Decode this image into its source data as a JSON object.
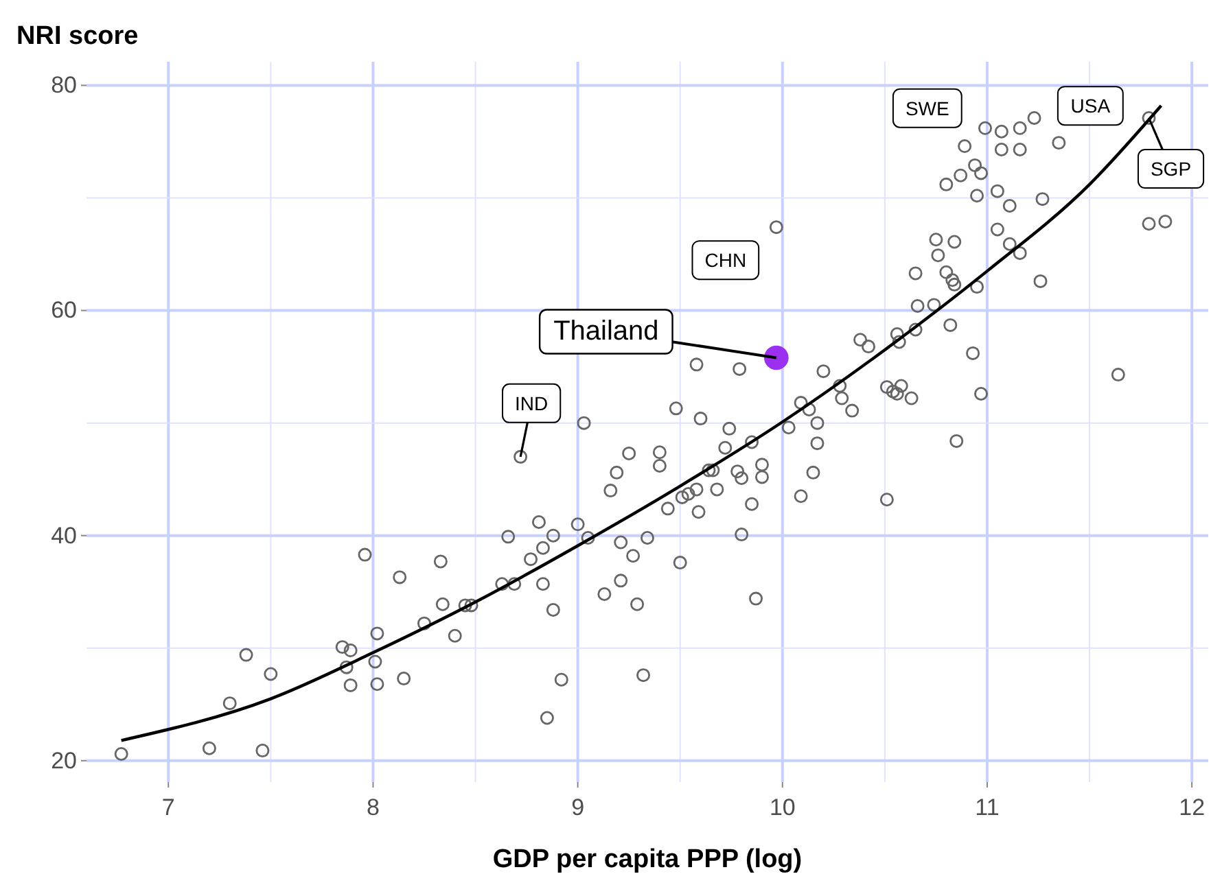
{
  "chart_data": {
    "type": "scatter",
    "ylabel": "NRI score",
    "xlabel": "GDP per capita PPP (log)",
    "xlim": [
      6.6,
      12.08
    ],
    "ylim": [
      18.1,
      82.1
    ],
    "xticks": [
      7,
      8,
      9,
      10,
      11,
      12
    ],
    "yticks": [
      20,
      40,
      60,
      80
    ],
    "grid": true,
    "marker": "circle",
    "series": [
      {
        "type": "scatter",
        "color": "#666666",
        "x": [
          6.77,
          7.2,
          7.46,
          7.3,
          7.38,
          7.5,
          7.96,
          8.13,
          8.33,
          8.34,
          8.4,
          8.25,
          8.45,
          8.48,
          7.85,
          7.89,
          7.87,
          8.02,
          8.01,
          7.89,
          8.02,
          8.15,
          8.66,
          8.88,
          8.83,
          8.77,
          8.63,
          8.69,
          8.83,
          8.88,
          9.05,
          9.21,
          9.34,
          9.27,
          9.21,
          9.13,
          9.29,
          9.5,
          9.8,
          9.87,
          8.92,
          9.32,
          8.85,
          8.81,
          9.0,
          9.97,
          9.58,
          9.79,
          9.48,
          9.6,
          9.03,
          8.72,
          9.25,
          9.4,
          9.4,
          9.74,
          9.85,
          9.72,
          9.19,
          9.16,
          9.64,
          9.66,
          9.78,
          9.8,
          9.9,
          9.9,
          9.58,
          9.68,
          9.44,
          9.51,
          9.54,
          9.59,
          9.85,
          10.09,
          10.15,
          10.03,
          10.09,
          10.13,
          10.17,
          10.17,
          10.2,
          10.28,
          10.29,
          10.34,
          10.38,
          10.42,
          10.51,
          10.54,
          10.56,
          10.58,
          10.63,
          10.56,
          10.57,
          10.65,
          10.82,
          10.93,
          10.97,
          10.85,
          10.51,
          11.64,
          10.99,
          11.07,
          11.16,
          11.23,
          10.89,
          11.07,
          11.16,
          11.35,
          10.94,
          10.87,
          10.97,
          10.8,
          10.95,
          11.05,
          11.11,
          11.27,
          11.79,
          11.79,
          11.87,
          11.05,
          11.11,
          11.16,
          11.26,
          10.75,
          10.84,
          10.76,
          10.65,
          10.8,
          10.83,
          10.84,
          10.95,
          10.66,
          10.74
        ],
        "values": [
          20.6,
          21.1,
          20.9,
          25.1,
          29.4,
          27.7,
          38.3,
          36.3,
          37.7,
          33.9,
          31.1,
          32.2,
          33.8,
          33.8,
          30.1,
          29.8,
          28.3,
          31.3,
          28.8,
          26.7,
          26.8,
          27.3,
          39.9,
          40.0,
          38.9,
          37.9,
          35.7,
          35.7,
          35.7,
          33.4,
          39.8,
          39.4,
          39.8,
          38.2,
          36.0,
          34.8,
          33.9,
          37.6,
          40.1,
          34.4,
          27.2,
          27.6,
          23.8,
          41.2,
          41.0,
          67.4,
          55.2,
          54.8,
          51.3,
          50.4,
          50.0,
          47.0,
          47.3,
          47.4,
          46.2,
          49.5,
          48.3,
          47.8,
          45.6,
          44.0,
          45.8,
          45.8,
          45.7,
          45.1,
          46.3,
          45.2,
          44.1,
          44.1,
          42.4,
          43.4,
          43.7,
          42.1,
          42.8,
          43.5,
          45.6,
          49.6,
          51.8,
          51.2,
          50.0,
          48.2,
          54.6,
          53.3,
          52.2,
          51.1,
          57.4,
          56.8,
          53.2,
          52.8,
          52.6,
          53.3,
          52.2,
          57.9,
          57.2,
          58.3,
          58.7,
          56.2,
          52.6,
          48.4,
          43.2,
          54.3,
          76.2,
          75.9,
          76.2,
          77.1,
          74.6,
          74.3,
          74.3,
          74.9,
          72.9,
          72.0,
          72.2,
          71.2,
          70.2,
          70.6,
          69.3,
          69.9,
          77.1,
          67.7,
          67.9,
          67.2,
          65.9,
          65.1,
          62.6,
          66.3,
          66.1,
          64.9,
          63.3,
          63.4,
          62.7,
          62.3,
          62.1,
          60.4,
          60.5
        ]
      },
      {
        "type": "line",
        "color": "#000000",
        "marker": "none",
        "x": [
          6.77,
          7.5,
          8,
          8.5,
          9,
          9.5,
          10,
          10.5,
          11,
          11.5,
          11.85
        ],
        "values": [
          21.8,
          25.5,
          29.6,
          34.1,
          39.1,
          44.4,
          50.1,
          56.5,
          63.5,
          71.2,
          78.2
        ]
      },
      {
        "type": "scatter",
        "name": "Thailand",
        "color": "#9b30f0",
        "x": [
          9.97
        ],
        "values": [
          55.8
        ]
      }
    ],
    "annotations": [
      {
        "text": "SWE",
        "x": 11.07,
        "y": 75.9
      },
      {
        "text": "USA",
        "x": 11.35,
        "y": 74.9
      },
      {
        "text": "SGP",
        "x": 11.79,
        "y": 77.1
      },
      {
        "text": "CHN",
        "x": 9.97,
        "y": 67.4
      },
      {
        "text": "IND",
        "x": 8.72,
        "y": 47.0
      }
    ]
  }
}
